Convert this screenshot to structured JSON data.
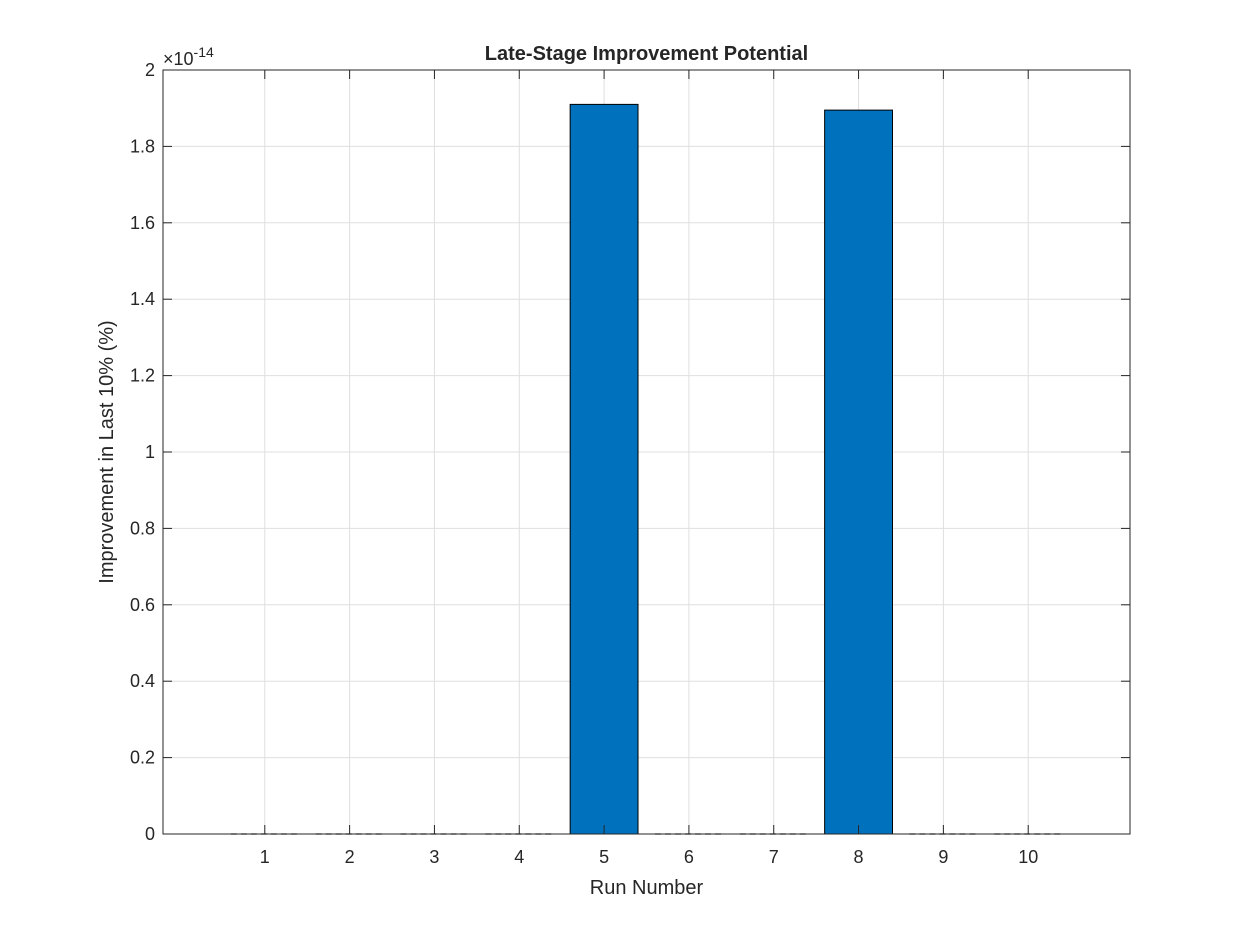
{
  "chart_data": {
    "type": "bar",
    "title": "Late-Stage Improvement Potential",
    "xlabel": "Run Number",
    "ylabel": "Improvement in Last 10% (%)",
    "categories": [
      "1",
      "2",
      "3",
      "4",
      "5",
      "6",
      "7",
      "8",
      "9",
      "10"
    ],
    "x": [
      1,
      2,
      3,
      4,
      5,
      6,
      7,
      8,
      9,
      10
    ],
    "values": [
      0,
      0,
      0,
      0,
      1.91e-14,
      0,
      0,
      1.895e-14,
      0,
      0
    ],
    "xlim": [
      -0.2,
      11.2
    ],
    "ylim": [
      0,
      2e-14
    ],
    "yticks": [
      0,
      0.2,
      0.4,
      0.6,
      0.8,
      1,
      1.2,
      1.4,
      1.6,
      1.8,
      2
    ],
    "yticklabels": [
      "0",
      "0.2",
      "0.4",
      "0.6",
      "0.8",
      "1",
      "1.2",
      "1.4",
      "1.6",
      "1.8",
      "2"
    ],
    "ymultiplier_base": "×10",
    "ymultiplier_exponent": "-14",
    "grid": true,
    "bar_color": "#0072BD",
    "bar_edge_color": "#000000",
    "zero_bar_line_style": "dashed"
  }
}
